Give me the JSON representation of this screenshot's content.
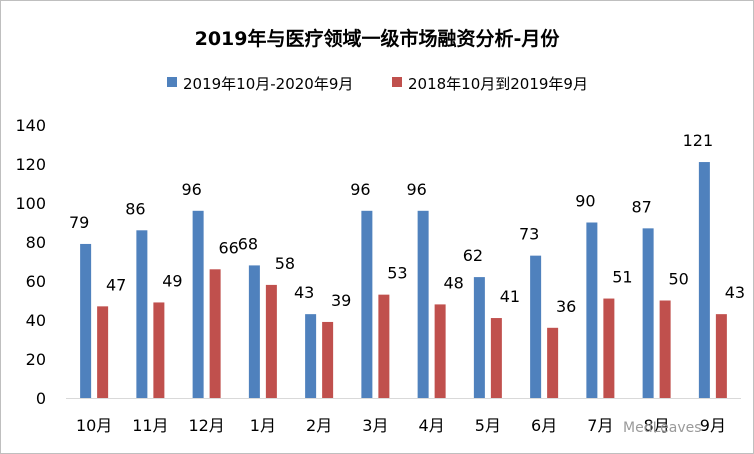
{
  "chart_data": {
    "type": "bar",
    "title": "2019年与医疗领域一级市场融资分析-月份",
    "categories": [
      "10月",
      "11月",
      "12月",
      "1月",
      "2月",
      "3月",
      "4月",
      "5月",
      "6月",
      "7月",
      "8月",
      "9月"
    ],
    "series": [
      {
        "name": "2019年10月-2020年9月",
        "color": "#4f81bd",
        "values": [
          79,
          86,
          96,
          68,
          43,
          96,
          96,
          62,
          73,
          90,
          87,
          121
        ]
      },
      {
        "name": "2018年10月到2019年9月",
        "color": "#c0504d",
        "values": [
          47,
          49,
          66,
          58,
          39,
          53,
          48,
          41,
          36,
          51,
          50,
          43
        ]
      }
    ],
    "ylim": [
      0,
      140
    ],
    "yticks": [
      0,
      20,
      40,
      60,
      80,
      100,
      120,
      140
    ],
    "legend_position": "top",
    "grid": false
  },
  "watermark": "MedLeaves"
}
